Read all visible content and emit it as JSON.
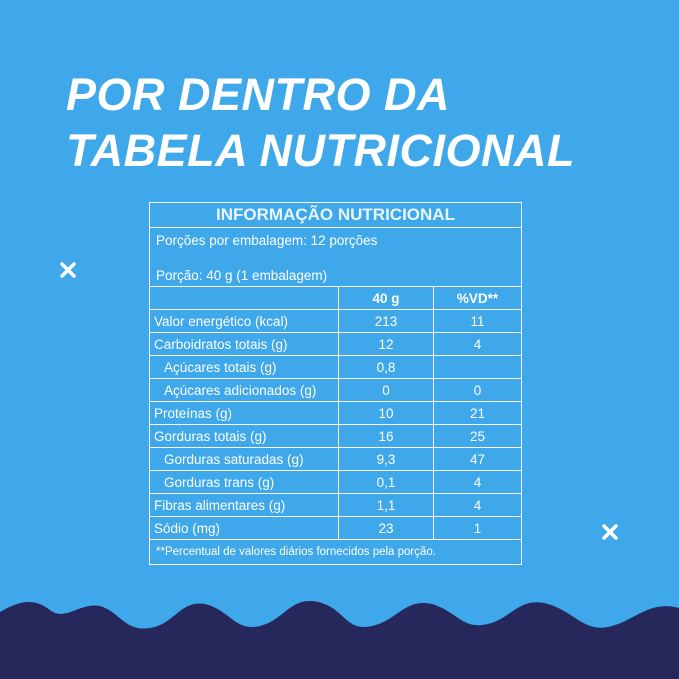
{
  "header": {
    "title_lines": [
      "POR DENTRO DA",
      "TABELA NUTRICIONAL"
    ]
  },
  "table": {
    "title": "INFORMAÇÃO NUTRICIONAL",
    "servings_per_package": "Porções por embalagem: 12 porções",
    "serving_size": "Porção: 40 g (1 embalagem)",
    "columns": [
      "40 g",
      "%VD**"
    ],
    "rows": [
      [
        "Valor energético (kcal)",
        "213",
        "11"
      ],
      [
        "Carboidratos totais (g)",
        "12",
        "4"
      ],
      [
        "Açúcares totais (g)",
        "0,8"
      ],
      [
        "Açúcares adicionados (g)",
        "0",
        "0"
      ],
      [
        "Proteínas (g)",
        "10",
        "21"
      ],
      [
        "Gorduras totais (g)",
        "16",
        "25"
      ],
      [
        "Gorduras saturadas (g)",
        "9,3",
        "47"
      ],
      [
        "Gorduras trans (g)",
        "0,1",
        "4"
      ],
      [
        "Fibras alimentares (g)",
        "1,1",
        "4"
      ],
      [
        "Sódio (mg)",
        "23",
        "1"
      ]
    ],
    "footnote": "**Percentual de valores diários fornecidos pela porção."
  }
}
